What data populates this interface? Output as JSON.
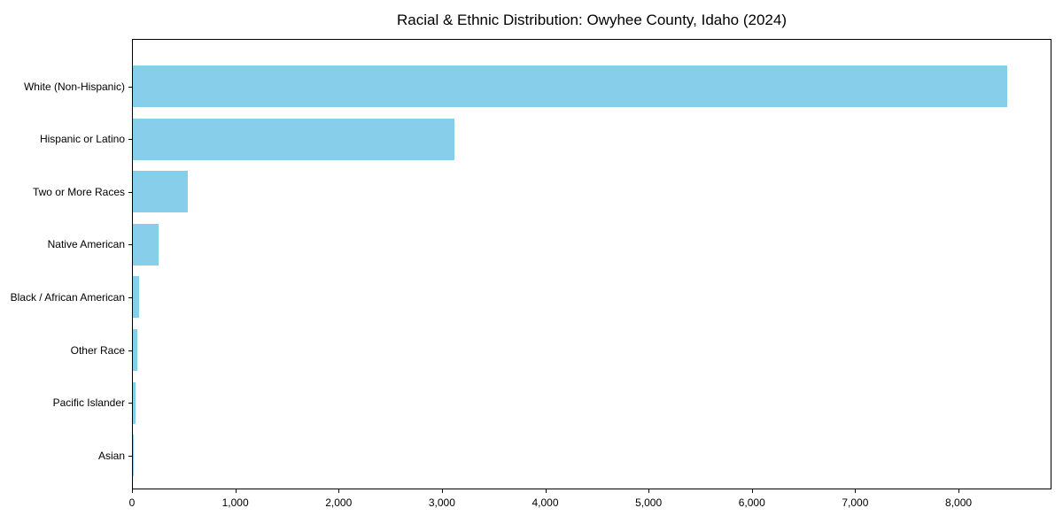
{
  "chart_data": {
    "type": "bar",
    "orientation": "horizontal",
    "title": "Racial & Ethnic Distribution: Owyhee County, Idaho (2024)",
    "categories": [
      "White (Non-Hispanic)",
      "Hispanic or Latino",
      "Two or More Races",
      "Native American",
      "Black / African American",
      "Other Race",
      "Pacific Islander",
      "Asian"
    ],
    "values": [
      8460,
      3110,
      530,
      250,
      60,
      45,
      25,
      10
    ],
    "xlabel": "",
    "ylabel": "",
    "xlim": [
      0,
      8900
    ],
    "x_ticks": [
      0,
      1000,
      2000,
      3000,
      4000,
      5000,
      6000,
      7000,
      8000
    ],
    "x_tick_labels": [
      "0",
      "1,000",
      "2,000",
      "3,000",
      "4,000",
      "5,000",
      "6,000",
      "7,000",
      "8,000"
    ],
    "bar_color": "#87CEEB",
    "frame_color": "#000000",
    "background_color": "#ffffff",
    "grid": false,
    "legend": null
  }
}
